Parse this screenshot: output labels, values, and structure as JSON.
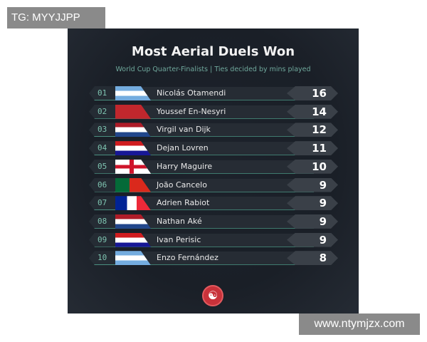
{
  "watermarks": {
    "top": "TG: MYYJJPP",
    "bottom": "www.ntymjzx.com"
  },
  "title": "Most Aerial Duels Won",
  "subtitle": "World Cup Quarter-Finalists | Ties decided by mins played",
  "rows": [
    {
      "rank": "01",
      "flag": "argentina",
      "name": "Nicolás Otamendi",
      "score": "16"
    },
    {
      "rank": "02",
      "flag": "morocco",
      "name": "Youssef En-Nesyri",
      "score": "14"
    },
    {
      "rank": "03",
      "flag": "netherlands",
      "name": "Virgil van Dijk",
      "score": "12"
    },
    {
      "rank": "04",
      "flag": "croatia",
      "name": "Dejan Lovren",
      "score": "11"
    },
    {
      "rank": "05",
      "flag": "england",
      "name": "Harry Maguire",
      "score": "10"
    },
    {
      "rank": "06",
      "flag": "portugal",
      "name": "João Cancelo",
      "score": "9"
    },
    {
      "rank": "07",
      "flag": "france",
      "name": "Adrien Rabiot",
      "score": "9"
    },
    {
      "rank": "08",
      "flag": "netherlands",
      "name": "Nathan Aké",
      "score": "9"
    },
    {
      "rank": "09",
      "flag": "croatia",
      "name": "Ivan Perisic",
      "score": "9"
    },
    {
      "rank": "10",
      "flag": "argentina",
      "name": "Enzo Fernández",
      "score": "8"
    }
  ],
  "colors": {
    "accent": "#7ec3b0",
    "logo": "#c8323a"
  }
}
